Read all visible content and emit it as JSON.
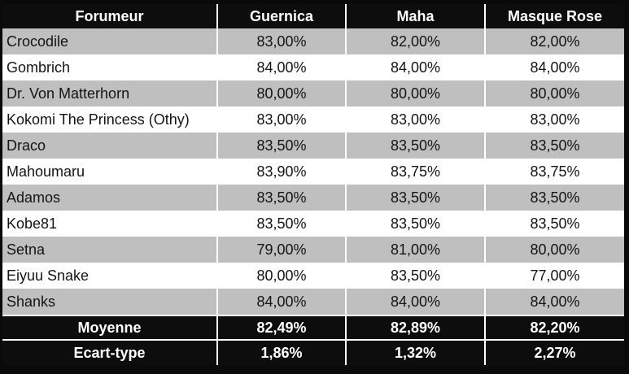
{
  "chart_data": {
    "type": "table",
    "columns": [
      "Forumeur",
      "Guernica",
      "Maha",
      "Masque Rose"
    ],
    "rows": [
      {
        "name": "Crocodile",
        "values": [
          "83,00%",
          "82,00%",
          "82,00%"
        ]
      },
      {
        "name": "Gombrich",
        "values": [
          "84,00%",
          "84,00%",
          "84,00%"
        ]
      },
      {
        "name": "Dr. Von Matterhorn",
        "values": [
          "80,00%",
          "80,00%",
          "80,00%"
        ]
      },
      {
        "name": "Kokomi The Princess (Othy)",
        "values": [
          "83,00%",
          "83,00%",
          "83,00%"
        ]
      },
      {
        "name": "Draco",
        "values": [
          "83,50%",
          "83,50%",
          "83,50%"
        ]
      },
      {
        "name": "Mahoumaru",
        "values": [
          "83,90%",
          "83,75%",
          "83,75%"
        ]
      },
      {
        "name": "Adamos",
        "values": [
          "83,50%",
          "83,50%",
          "83,50%"
        ]
      },
      {
        "name": "Kobe81",
        "values": [
          "83,50%",
          "83,50%",
          "83,50%"
        ]
      },
      {
        "name": "Setna",
        "values": [
          "79,00%",
          "81,00%",
          "80,00%"
        ]
      },
      {
        "name": "Eiyuu Snake",
        "values": [
          "80,00%",
          "83,50%",
          "77,00%"
        ]
      },
      {
        "name": "Shanks",
        "values": [
          "84,00%",
          "84,00%",
          "84,00%"
        ]
      }
    ],
    "summary": [
      {
        "name": "Moyenne",
        "values": [
          "82,49%",
          "82,89%",
          "82,20%"
        ]
      },
      {
        "name": "Ecart-type",
        "values": [
          "1,86%",
          "1,32%",
          "2,27%"
        ]
      }
    ],
    "layout": {
      "grid": "white 2px separators",
      "row_striping": "gray/white alternating starting gray",
      "decimal_separator": ","
    },
    "colors": {
      "header_bg": "#0d0d0d",
      "summary_bg": "#0d0d0d",
      "row_alt_bg": "#bfbfbf",
      "row_bg": "#ffffff",
      "text_on_dark": "#ffffff",
      "text_on_light": "#141414",
      "grid_line": "#ffffff",
      "outer_border": "#0a0a0a"
    }
  }
}
